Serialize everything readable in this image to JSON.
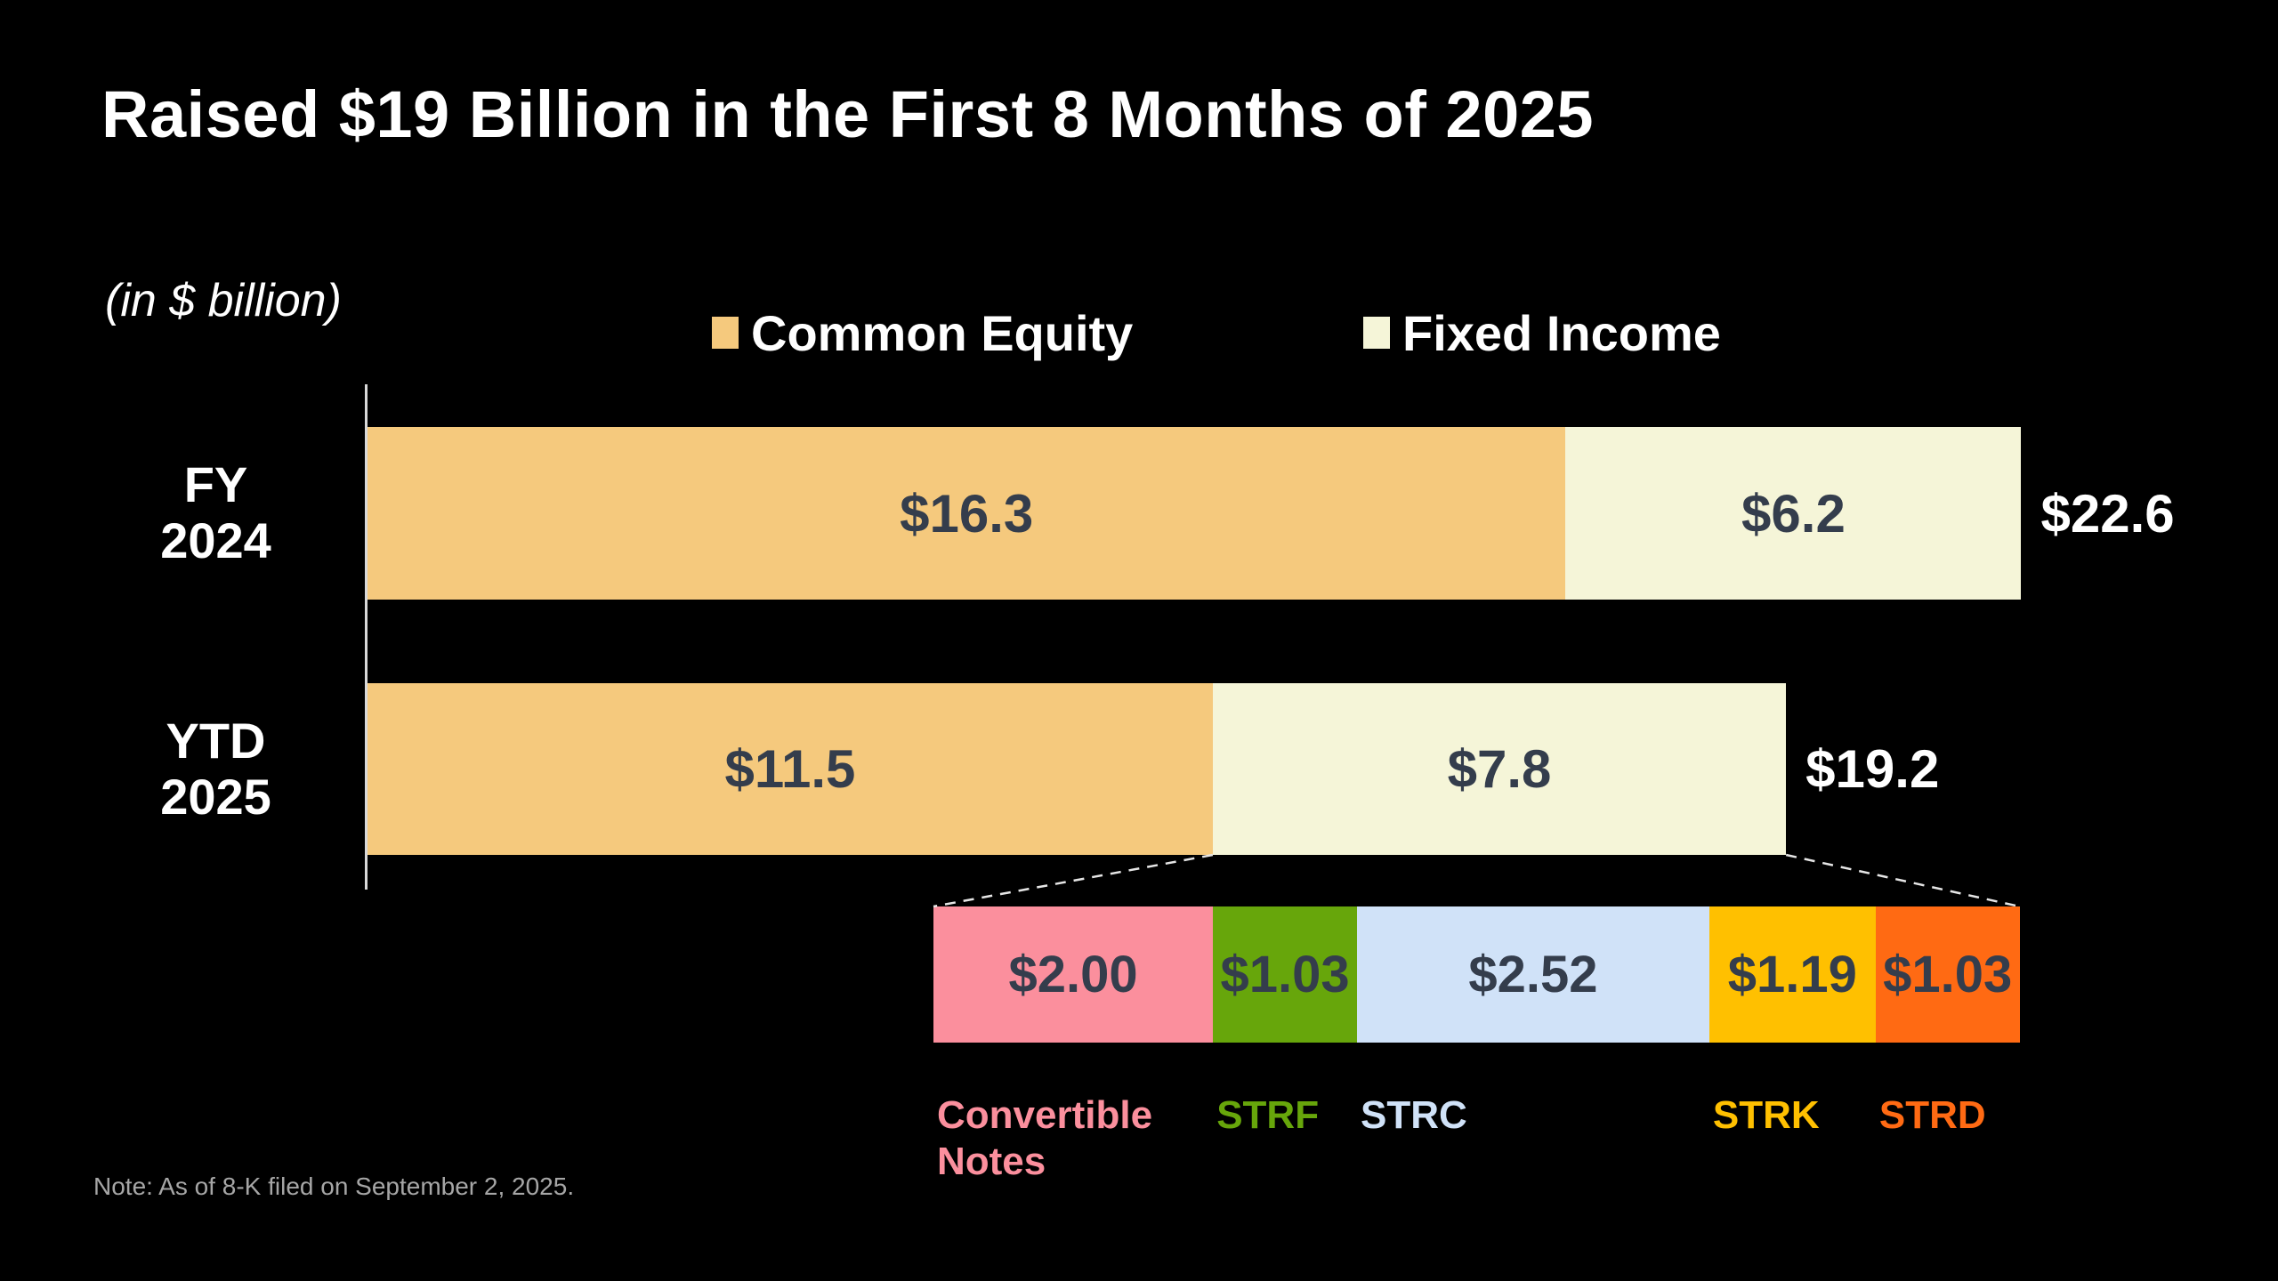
{
  "slide": {
    "title": "Raised $19 Billion in the First 8 Months of 2025",
    "unit_note": "(in $ billion)",
    "footnote": "Note: As of 8-K filed on September 2, 2025."
  },
  "legend": {
    "items": [
      {
        "label": "Common Equity",
        "color": "#F5C97D"
      },
      {
        "label": "Fixed Income",
        "color": "#F5F5D8"
      }
    ]
  },
  "chart_data": {
    "type": "bar",
    "orientation": "horizontal-stacked",
    "unit": "$ billion",
    "grid": false,
    "legend_position": "top-center",
    "categories": [
      "FY 2024",
      "YTD 2025"
    ],
    "category_lines": [
      [
        "FY",
        "2024"
      ],
      [
        "YTD",
        "2025"
      ]
    ],
    "series": [
      {
        "name": "Common Equity",
        "color": "#F5C97D",
        "values": [
          16.3,
          11.5
        ],
        "labels": [
          "$16.3",
          "$11.5"
        ]
      },
      {
        "name": "Fixed Income",
        "color": "#F5F5D8",
        "values": [
          6.2,
          7.8
        ],
        "labels": [
          "$6.2",
          "$7.8"
        ]
      }
    ],
    "totals": [
      {
        "value": 22.6,
        "label": "$22.6"
      },
      {
        "value": 19.2,
        "label": "$19.2"
      }
    ],
    "value_text_color": "#343D4C",
    "breakdown": {
      "breakdown_of": "Fixed Income YTD 2025",
      "segments": [
        {
          "name": "Convertible Notes",
          "value": 2.0,
          "label": "$2.00",
          "color": "#FB8F9D"
        },
        {
          "name": "STRF",
          "value": 1.03,
          "label": "$1.03",
          "color": "#67A60B"
        },
        {
          "name": "STRC",
          "value": 2.52,
          "label": "$2.52",
          "color": "#D0E2F8"
        },
        {
          "name": "STRK",
          "value": 1.19,
          "label": "$1.19",
          "color": "#FFC000"
        },
        {
          "name": "STRD",
          "value": 1.03,
          "label": "$1.03",
          "color": "#FF6A13"
        }
      ]
    }
  }
}
